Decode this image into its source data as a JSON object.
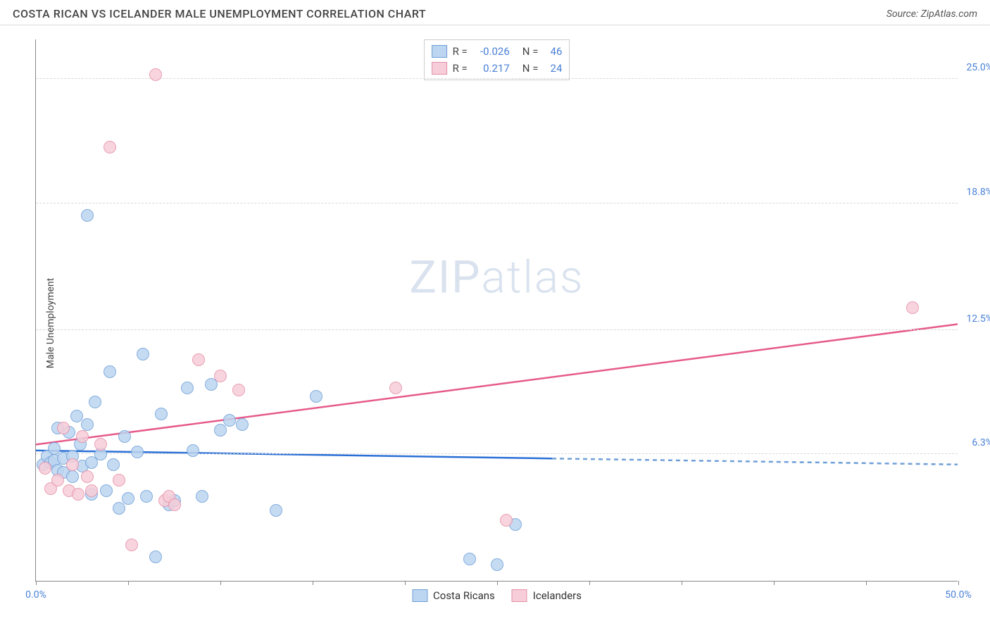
{
  "title": "COSTA RICAN VS ICELANDER MALE UNEMPLOYMENT CORRELATION CHART",
  "source": "Source: ZipAtlas.com",
  "ylabel": "Male Unemployment",
  "watermark_zip": "ZIP",
  "watermark_atlas": "atlas",
  "chart": {
    "type": "scatter",
    "xlim": [
      0,
      50
    ],
    "ylim": [
      0,
      27
    ],
    "x_tick_positions": [
      0,
      5,
      10,
      15,
      20,
      25,
      30,
      35,
      40,
      45,
      50
    ],
    "x_tick_labels": {
      "0": "0.0%",
      "50": "50.0%"
    },
    "y_grid": [
      {
        "value": 6.3,
        "label": "6.3%"
      },
      {
        "value": 12.5,
        "label": "12.5%"
      },
      {
        "value": 18.8,
        "label": "18.8%"
      },
      {
        "value": 25.0,
        "label": "25.0%"
      }
    ],
    "background_color": "#ffffff",
    "grid_color": "#d8d8d8",
    "axis_color": "#888888",
    "label_color": "#4a80d6",
    "series": [
      {
        "name": "Costa Ricans",
        "fill": "#bcd5f0",
        "stroke": "#6f9fd8",
        "trend_color": "#2a6fd6",
        "trend_dash_color": "#6f9fd8",
        "r": "-0.026",
        "n": "46",
        "trend": {
          "x1": 0,
          "y1": 6.5,
          "x2": 28,
          "y2": 6.1,
          "x2_dash": 50,
          "y2_dash": 5.8
        },
        "points": [
          [
            0.4,
            5.8
          ],
          [
            0.6,
            6.2
          ],
          [
            0.8,
            5.9
          ],
          [
            1.0,
            6.6
          ],
          [
            1.0,
            6.0
          ],
          [
            1.2,
            5.5
          ],
          [
            1.2,
            7.6
          ],
          [
            1.5,
            6.1
          ],
          [
            1.5,
            5.4
          ],
          [
            1.8,
            7.4
          ],
          [
            2.0,
            6.2
          ],
          [
            2.0,
            5.2
          ],
          [
            2.2,
            8.2
          ],
          [
            2.4,
            6.8
          ],
          [
            2.5,
            5.7
          ],
          [
            2.8,
            7.8
          ],
          [
            2.8,
            18.2
          ],
          [
            3.0,
            5.9
          ],
          [
            3.0,
            4.3
          ],
          [
            3.2,
            8.9
          ],
          [
            3.5,
            6.3
          ],
          [
            3.8,
            4.5
          ],
          [
            4.0,
            10.4
          ],
          [
            4.2,
            5.8
          ],
          [
            4.5,
            3.6
          ],
          [
            4.8,
            7.2
          ],
          [
            5.0,
            4.1
          ],
          [
            5.5,
            6.4
          ],
          [
            5.8,
            11.3
          ],
          [
            6.0,
            4.2
          ],
          [
            6.5,
            1.2
          ],
          [
            6.8,
            8.3
          ],
          [
            7.2,
            3.8
          ],
          [
            7.5,
            4.0
          ],
          [
            8.2,
            9.6
          ],
          [
            8.5,
            6.5
          ],
          [
            9.0,
            4.2
          ],
          [
            9.5,
            9.8
          ],
          [
            10.0,
            7.5
          ],
          [
            10.5,
            8.0
          ],
          [
            11.2,
            7.8
          ],
          [
            13.0,
            3.5
          ],
          [
            15.2,
            9.2
          ],
          [
            23.5,
            1.1
          ],
          [
            25.0,
            0.8
          ],
          [
            26.0,
            2.8
          ]
        ]
      },
      {
        "name": "Icelanders",
        "fill": "#f6cdd9",
        "stroke": "#e68fa8",
        "trend_color": "#e65a8a",
        "r": "0.217",
        "n": "24",
        "trend": {
          "x1": 0,
          "y1": 6.8,
          "x2": 50,
          "y2": 12.8
        },
        "points": [
          [
            0.5,
            5.6
          ],
          [
            0.8,
            4.6
          ],
          [
            1.2,
            5.0
          ],
          [
            1.5,
            7.6
          ],
          [
            1.8,
            4.5
          ],
          [
            2.0,
            5.8
          ],
          [
            2.3,
            4.3
          ],
          [
            2.5,
            7.2
          ],
          [
            2.8,
            5.2
          ],
          [
            3.0,
            4.5
          ],
          [
            3.5,
            6.8
          ],
          [
            4.0,
            21.6
          ],
          [
            4.5,
            5.0
          ],
          [
            5.2,
            1.8
          ],
          [
            6.5,
            25.2
          ],
          [
            7.0,
            4.0
          ],
          [
            7.2,
            4.2
          ],
          [
            7.5,
            3.8
          ],
          [
            8.8,
            11.0
          ],
          [
            10.0,
            10.2
          ],
          [
            11.0,
            9.5
          ],
          [
            19.5,
            9.6
          ],
          [
            25.5,
            3.0
          ],
          [
            47.5,
            13.6
          ]
        ]
      }
    ],
    "legend": [
      {
        "label": "Costa Ricans",
        "fill": "#bcd5f0",
        "stroke": "#6f9fd8"
      },
      {
        "label": "Icelanders",
        "fill": "#f6cdd9",
        "stroke": "#e68fa8"
      }
    ]
  }
}
